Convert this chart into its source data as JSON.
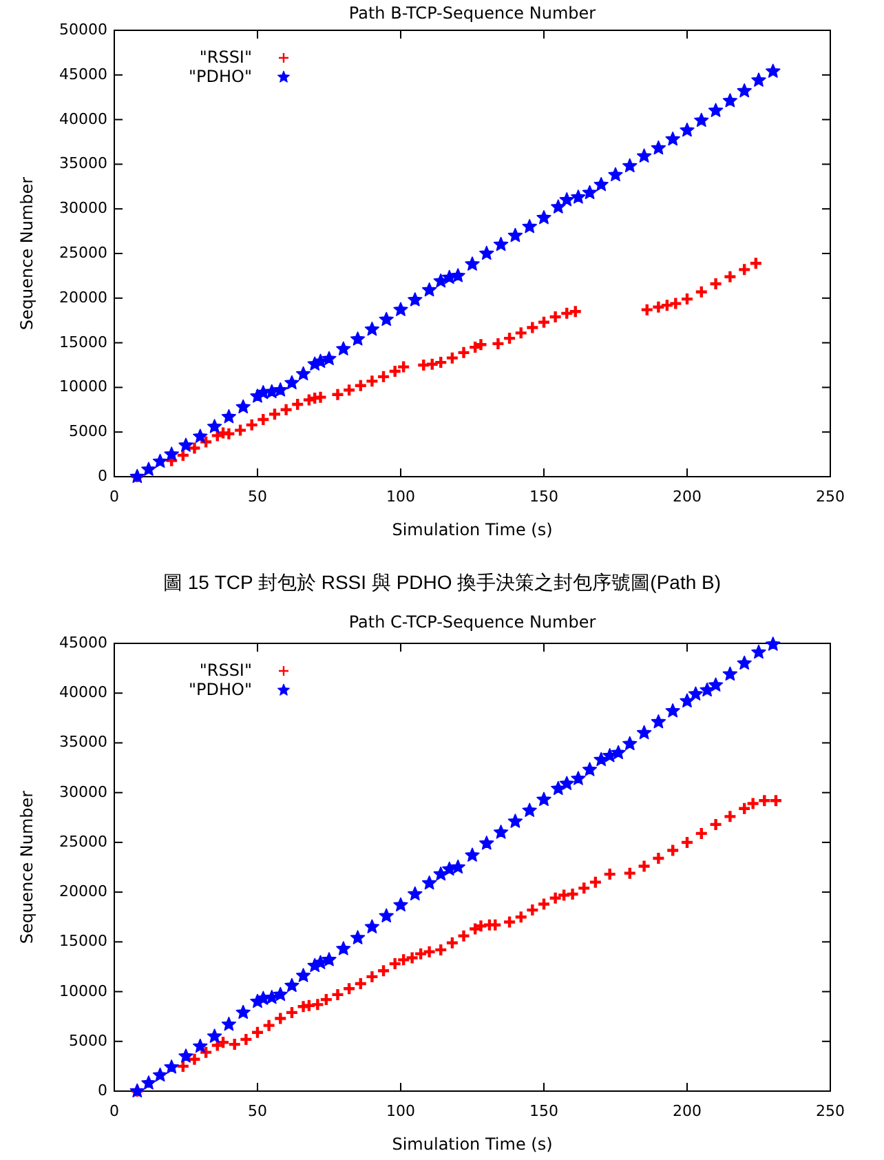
{
  "chart_data": [
    {
      "type": "scatter",
      "title": "Path B-TCP-Sequence Number",
      "xlabel": "Simulation Time (s)",
      "ylabel": "Sequence Number",
      "annotations": [
        "圖 15 TCP 封包於 RSSI 與 PDHO 換手決策之封包序號圖(Path B)"
      ],
      "xlim": [
        0,
        250
      ],
      "xticks": [
        0,
        50,
        100,
        150,
        200,
        250
      ],
      "ylim": [
        0,
        50000
      ],
      "yticks": [
        0,
        5000,
        10000,
        15000,
        20000,
        25000,
        30000,
        35000,
        40000,
        45000,
        50000
      ],
      "grid": false,
      "legend": "top left",
      "series": [
        {
          "name": "\"RSSI\"",
          "color": "#ff0000",
          "marker": "cross",
          "x": [
            8,
            20,
            24,
            28,
            32,
            36,
            38,
            40,
            44,
            48,
            52,
            56,
            60,
            64,
            68,
            70,
            72,
            78,
            82,
            86,
            90,
            94,
            98,
            101,
            108,
            111,
            114,
            118,
            122,
            126,
            128,
            134,
            138,
            142,
            146,
            150,
            154,
            158,
            161,
            186,
            190,
            193,
            196,
            200,
            205,
            210,
            215,
            220,
            224
          ],
          "values": [
            0,
            1800,
            2400,
            3200,
            3900,
            4600,
            4900,
            4800,
            5200,
            5800,
            6400,
            7000,
            7500,
            8100,
            8600,
            8800,
            8900,
            9200,
            9700,
            10200,
            10700,
            11200,
            11800,
            12300,
            12500,
            12600,
            12800,
            13300,
            13900,
            14500,
            14800,
            14900,
            15500,
            16100,
            16700,
            17300,
            17900,
            18300,
            18500,
            18700,
            19000,
            19200,
            19400,
            19900,
            20700,
            21600,
            22400,
            23200,
            23900
          ]
        },
        {
          "name": "\"PDHO\"",
          "color": "#0000ff",
          "marker": "star",
          "x": [
            8,
            12,
            16,
            20,
            25,
            30,
            35,
            40,
            45,
            50,
            52,
            55,
            58,
            62,
            66,
            70,
            72,
            75,
            80,
            85,
            90,
            95,
            100,
            105,
            110,
            114,
            117,
            120,
            125,
            130,
            135,
            140,
            145,
            150,
            155,
            158,
            162,
            166,
            170,
            175,
            180,
            185,
            190,
            195,
            200,
            205,
            210,
            215,
            220,
            225,
            230
          ],
          "values": [
            0,
            800,
            1700,
            2500,
            3500,
            4500,
            5600,
            6700,
            7800,
            9000,
            9400,
            9500,
            9700,
            10500,
            11500,
            12600,
            12900,
            13200,
            14300,
            15400,
            16500,
            17600,
            18700,
            19800,
            20900,
            21900,
            22300,
            22500,
            23800,
            25000,
            26000,
            27000,
            28000,
            29000,
            30200,
            31000,
            31300,
            31800,
            32700,
            33800,
            34800,
            35900,
            36800,
            37800,
            38800,
            39900,
            41000,
            42100,
            43200,
            44400,
            45400
          ]
        }
      ]
    },
    {
      "type": "scatter",
      "title": "Path C-TCP-Sequence Number",
      "xlabel": "Simulation Time (s)",
      "ylabel": "Sequence Number",
      "xlim": [
        0,
        250
      ],
      "xticks": [
        0,
        50,
        100,
        150,
        200,
        250
      ],
      "ylim": [
        0,
        45000
      ],
      "yticks": [
        0,
        5000,
        10000,
        15000,
        20000,
        25000,
        30000,
        35000,
        40000,
        45000
      ],
      "grid": false,
      "legend": "top left",
      "series": [
        {
          "name": "\"RSSI\"",
          "color": "#ff0000",
          "marker": "cross",
          "x": [
            8,
            24,
            28,
            32,
            36,
            38,
            42,
            46,
            50,
            54,
            58,
            62,
            66,
            68,
            71,
            74,
            78,
            82,
            86,
            90,
            94,
            98,
            101,
            104,
            107,
            110,
            114,
            118,
            122,
            126,
            128,
            131,
            133,
            138,
            142,
            146,
            150,
            154,
            157,
            160,
            164,
            168,
            173,
            180,
            185,
            190,
            195,
            200,
            205,
            210,
            215,
            220,
            223,
            227,
            231
          ],
          "values": [
            0,
            2500,
            3200,
            3900,
            4600,
            4900,
            4700,
            5200,
            5900,
            6600,
            7300,
            7900,
            8500,
            8600,
            8700,
            9200,
            9700,
            10300,
            10800,
            11500,
            12100,
            12800,
            13200,
            13400,
            13800,
            14000,
            14200,
            14900,
            15600,
            16300,
            16600,
            16700,
            16700,
            17000,
            17500,
            18200,
            18800,
            19400,
            19700,
            19800,
            20400,
            21000,
            21800,
            21900,
            22600,
            23400,
            24200,
            25000,
            25900,
            26800,
            27600,
            28400,
            28900,
            29200,
            29200
          ]
        },
        {
          "name": "\"PDHO\"",
          "color": "#0000ff",
          "marker": "star",
          "x": [
            8,
            12,
            16,
            20,
            25,
            30,
            35,
            40,
            45,
            50,
            52,
            55,
            58,
            62,
            66,
            70,
            72,
            75,
            80,
            85,
            90,
            95,
            100,
            105,
            110,
            114,
            117,
            120,
            125,
            130,
            135,
            140,
            145,
            150,
            155,
            158,
            162,
            166,
            170,
            173,
            176,
            180,
            185,
            190,
            195,
            200,
            203,
            207,
            210,
            215,
            220,
            225,
            230
          ],
          "values": [
            0,
            800,
            1600,
            2400,
            3500,
            4500,
            5500,
            6700,
            7900,
            9000,
            9300,
            9400,
            9700,
            10600,
            11600,
            12600,
            12900,
            13200,
            14300,
            15400,
            16500,
            17600,
            18700,
            19800,
            20900,
            21800,
            22300,
            22500,
            23700,
            24900,
            26000,
            27100,
            28200,
            29300,
            30400,
            30900,
            31400,
            32300,
            33300,
            33700,
            34000,
            34900,
            36000,
            37100,
            38200,
            39200,
            39900,
            40300,
            40800,
            41900,
            43000,
            44100,
            44900
          ]
        }
      ]
    }
  ]
}
